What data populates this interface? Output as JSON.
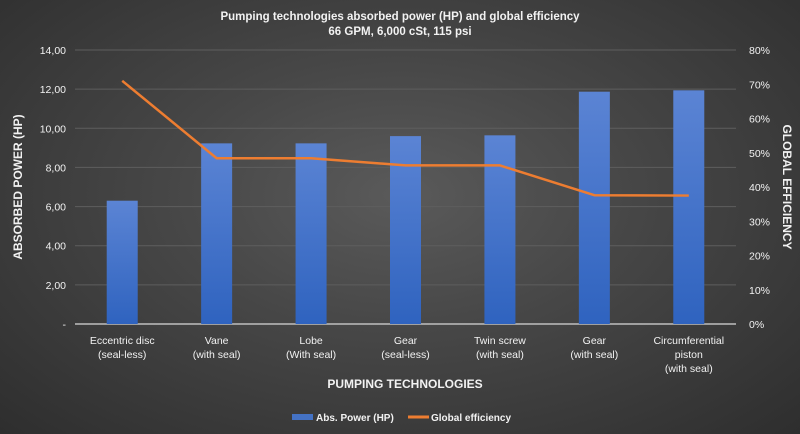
{
  "chart_data": {
    "type": "bar+line",
    "title": "Pumping technologies absorbed power (HP) and global efficiency",
    "subtitle": "66 GPM, 6,000 cSt, 115 psi",
    "xlabel": "PUMPING TECHNOLOGIES",
    "ylabel": "ABSORBED POWER (HP)",
    "y2label": "GLOBAL EFFICIENCY",
    "categories": [
      [
        "Eccentric disc",
        "(seal-less)"
      ],
      [
        "Vane",
        "(with seal)"
      ],
      [
        "Lobe",
        "(With seal)"
      ],
      [
        "Gear",
        "(seal-less)"
      ],
      [
        "Twin screw",
        "(with seal)"
      ],
      [
        "Gear",
        "(with seal)"
      ],
      [
        "Circumferential",
        "piston",
        "(with seal)"
      ]
    ],
    "ylim": [
      0,
      14
    ],
    "y2lim": [
      0,
      80
    ],
    "yticks": [
      "-",
      "2,00",
      "4,00",
      "6,00",
      "8,00",
      "10,00",
      "12,00",
      "14,00"
    ],
    "y2ticks": [
      "0%",
      "10%",
      "20%",
      "30%",
      "40%",
      "50%",
      "60%",
      "70%",
      "80%"
    ],
    "grid": true,
    "legend_position": "bottom",
    "series": [
      {
        "name": "Abs. Power (HP)",
        "type": "bar",
        "axis": "left",
        "color": "#4472c4",
        "values": [
          6.3,
          9.23,
          9.23,
          9.6,
          9.64,
          11.87,
          11.94
        ]
      },
      {
        "name": "Global efficiency",
        "type": "line",
        "axis": "right",
        "color": "#ed7d31",
        "values": [
          71,
          48.4,
          48.4,
          46.3,
          46.3,
          37.6,
          37.5
        ]
      }
    ]
  }
}
